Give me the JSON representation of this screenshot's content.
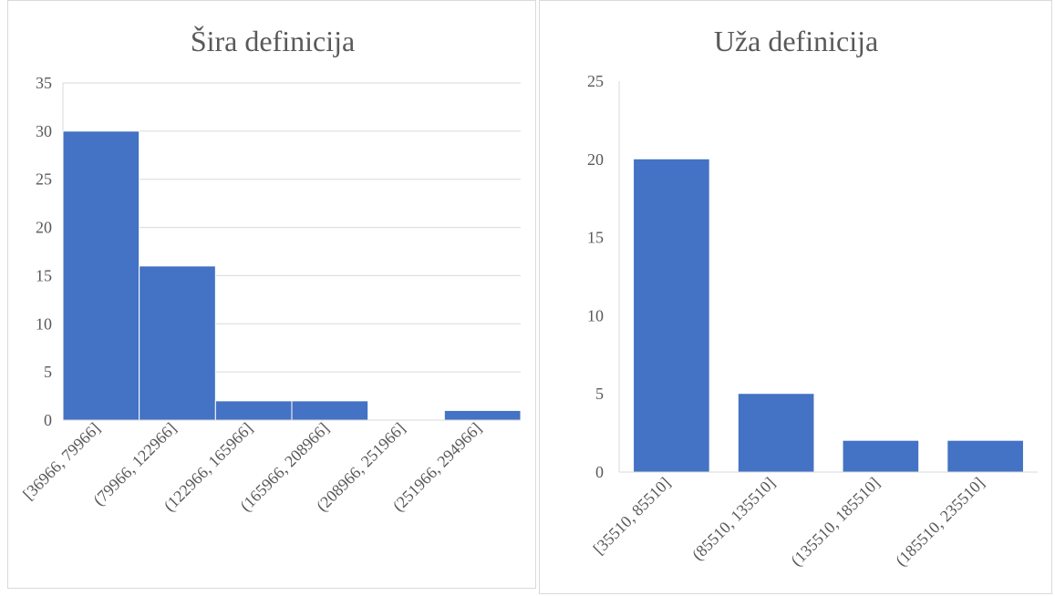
{
  "chart_data": [
    {
      "type": "bar",
      "title": "Šira definicija",
      "categories": [
        "[36966, 79966]",
        "(79966, 122966]",
        "(122966, 165966]",
        "(165966, 208966]",
        "(208966, 251966]",
        "(251966, 294966]"
      ],
      "values": [
        30,
        16,
        2,
        2,
        0,
        1
      ],
      "ylim": [
        0,
        35
      ],
      "yticks": [
        0,
        5,
        10,
        15,
        20,
        25,
        30,
        35
      ],
      "xlabel": "",
      "ylabel": "",
      "grid": true,
      "legend": "none",
      "bar_color": "#4472c4",
      "histogram": true
    },
    {
      "type": "bar",
      "title": "Uža definicija",
      "categories": [
        "[35510, 85510]",
        "(85510, 135510]",
        "(135510, 185510]",
        "(185510, 235510]"
      ],
      "values": [
        20,
        5,
        2,
        2
      ],
      "ylim": [
        0,
        25
      ],
      "yticks": [
        0,
        5,
        10,
        15,
        20,
        25
      ],
      "xlabel": "",
      "ylabel": "",
      "grid": false,
      "legend": "none",
      "bar_color": "#4472c4",
      "histogram": false
    }
  ]
}
